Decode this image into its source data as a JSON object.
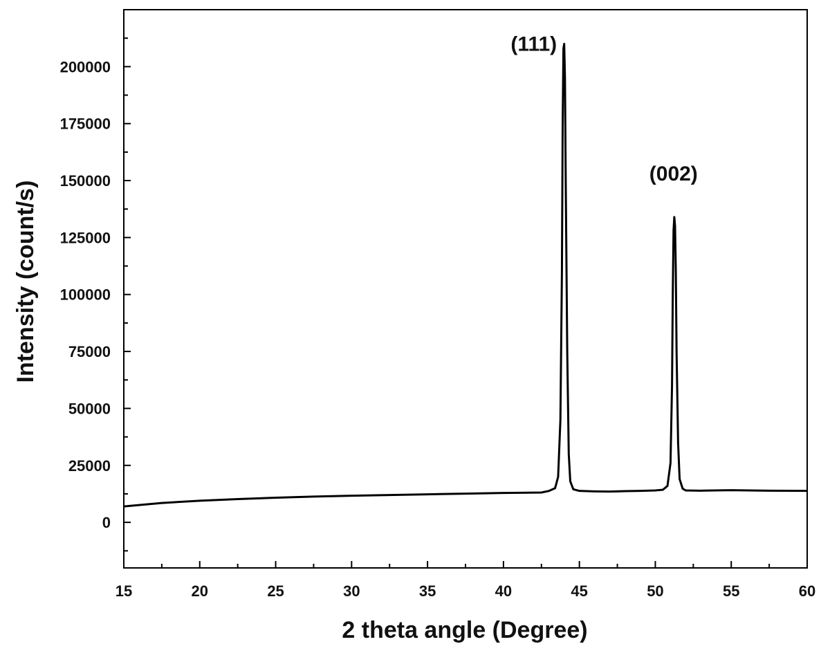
{
  "chart_data": {
    "type": "line",
    "title": "",
    "xlabel": "2 theta angle (Degree)",
    "ylabel": "Intensity (count/s)",
    "xlim": [
      15,
      60
    ],
    "ylim": [
      -20000,
      225000
    ],
    "x_ticks": [
      15,
      20,
      25,
      30,
      35,
      40,
      45,
      50,
      55,
      60
    ],
    "x_tick_labels": [
      "15",
      "20",
      "25",
      "30",
      "35",
      "40",
      "45",
      "50",
      "55",
      "60"
    ],
    "y_ticks": [
      0,
      25000,
      50000,
      75000,
      100000,
      125000,
      150000,
      175000,
      200000
    ],
    "y_tick_labels": [
      "0",
      "25000",
      "50000",
      "75000",
      "100000",
      "125000",
      "150000",
      "175000",
      "200000"
    ],
    "grid": false,
    "legend": "none",
    "line_color": "#000000",
    "series": [
      {
        "x": [
          15.0,
          17.5,
          20.0,
          22.5,
          25.0,
          27.5,
          30.0,
          32.5,
          35.0,
          37.5,
          40.0,
          42.5,
          43.0,
          43.4,
          43.6,
          43.75,
          43.85,
          43.9,
          43.95,
          44.0,
          44.05,
          44.1,
          44.2,
          44.3,
          44.4,
          44.6,
          45.0,
          46.0,
          47.0,
          48.0,
          49.0,
          50.0,
          50.5,
          50.8,
          51.0,
          51.1,
          51.15,
          51.2,
          51.25,
          51.3,
          51.35,
          51.4,
          51.5,
          51.6,
          51.8,
          52.0,
          53.0,
          55.0,
          57.5,
          60.0
        ],
        "y": [
          7000,
          8500,
          9500,
          10200,
          10800,
          11300,
          11700,
          12000,
          12300,
          12600,
          12900,
          13100,
          13800,
          15000,
          20000,
          45000,
          110000,
          175000,
          208000,
          210000,
          195000,
          150000,
          75000,
          30000,
          18000,
          14500,
          13800,
          13600,
          13500,
          13700,
          13800,
          14000,
          14300,
          16000,
          26000,
          60000,
          100000,
          128000,
          134000,
          130000,
          110000,
          75000,
          35000,
          19000,
          14800,
          14000,
          13900,
          14100,
          13900,
          13800
        ]
      }
    ],
    "annotations": [
      {
        "text": "(111)",
        "x": 42.0,
        "y": 207000
      },
      {
        "text": "(002)",
        "x": 51.2,
        "y": 150000
      }
    ]
  }
}
